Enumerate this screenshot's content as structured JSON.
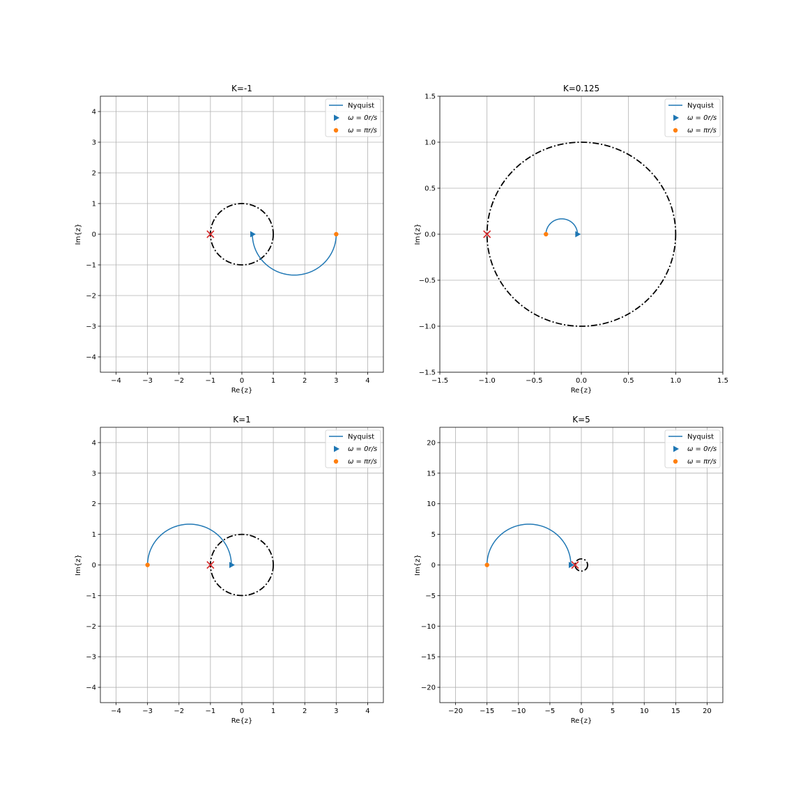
{
  "figure": {
    "legend_labels": {
      "nyquist": "Nyquist",
      "omega0": "ω = 0r/s",
      "omegapi": "ω = πr/s"
    },
    "colors": {
      "nyquist": "#1f77b4",
      "end_marker": "#ff7f0e",
      "critical": "#d62728",
      "unit_circle": "#000000",
      "grid": "#b0b0b0"
    }
  },
  "chart_data": [
    {
      "type": "line",
      "title": "K=-1",
      "xlabel": "Re{z}",
      "ylabel": "Im{z}",
      "xlim": [
        -4.5,
        4.5
      ],
      "ylim": [
        -4.5,
        4.5
      ],
      "xticks": [
        -4,
        -3,
        -2,
        -1,
        0,
        1,
        2,
        3,
        4
      ],
      "yticks": [
        -4,
        -3,
        -2,
        -1,
        0,
        1,
        2,
        3,
        4
      ],
      "tick_labels_x": [
        "−4",
        "−3",
        "−2",
        "−1",
        "0",
        "1",
        "2",
        "3",
        "4"
      ],
      "tick_labels_y": [
        "−4",
        "−3",
        "−2",
        "−1",
        "0",
        "1",
        "2",
        "3",
        "4"
      ],
      "grid": true,
      "legend_position": "top-right",
      "nyquist_arc": {
        "start": [
          0.333,
          0
        ],
        "end": [
          3,
          0
        ],
        "center": [
          1.667,
          0
        ],
        "radius": 1.333,
        "side": "below"
      },
      "start_point": [
        0.333,
        0
      ],
      "end_point": [
        3,
        0
      ],
      "critical_point": [
        -1,
        0
      ],
      "unit_circle_radius": 1
    },
    {
      "type": "line",
      "title": "K=0.125",
      "xlabel": "Re{z}",
      "ylabel": "Im{z}",
      "xlim": [
        -1.5,
        1.5
      ],
      "ylim": [
        -1.5,
        1.5
      ],
      "xticks": [
        -1.5,
        -1.0,
        -0.5,
        0.0,
        0.5,
        1.0,
        1.5
      ],
      "yticks": [
        -1.5,
        -1.0,
        -0.5,
        0.0,
        0.5,
        1.0,
        1.5
      ],
      "tick_labels_x": [
        "−1.5",
        "−1.0",
        "−0.5",
        "0.0",
        "0.5",
        "1.0",
        "1.5"
      ],
      "tick_labels_y": [
        "−1.5",
        "−1.0",
        "−0.5",
        "0.0",
        "0.5",
        "1.0",
        "1.5"
      ],
      "grid": true,
      "legend_position": "top-right",
      "nyquist_arc": {
        "start": [
          -0.042,
          0
        ],
        "end": [
          -0.375,
          0
        ],
        "center": [
          -0.208,
          0
        ],
        "radius": 0.167,
        "side": "above"
      },
      "start_point": [
        -0.042,
        0
      ],
      "end_point": [
        -0.375,
        0
      ],
      "critical_point": [
        -1,
        0
      ],
      "unit_circle_radius": 1
    },
    {
      "type": "line",
      "title": "K=1",
      "xlabel": "Re{z}",
      "ylabel": "Im{z}",
      "xlim": [
        -4.5,
        4.5
      ],
      "ylim": [
        -4.5,
        4.5
      ],
      "xticks": [
        -4,
        -3,
        -2,
        -1,
        0,
        1,
        2,
        3,
        4
      ],
      "yticks": [
        -4,
        -3,
        -2,
        -1,
        0,
        1,
        2,
        3,
        4
      ],
      "tick_labels_x": [
        "−4",
        "−3",
        "−2",
        "−1",
        "0",
        "1",
        "2",
        "3",
        "4"
      ],
      "tick_labels_y": [
        "−4",
        "−3",
        "−2",
        "−1",
        "0",
        "1",
        "2",
        "3",
        "4"
      ],
      "grid": true,
      "legend_position": "top-right",
      "nyquist_arc": {
        "start": [
          -0.333,
          0
        ],
        "end": [
          -3,
          0
        ],
        "center": [
          -1.667,
          0
        ],
        "radius": 1.333,
        "side": "above"
      },
      "start_point": [
        -0.333,
        0
      ],
      "end_point": [
        -3,
        0
      ],
      "critical_point": [
        -1,
        0
      ],
      "unit_circle_radius": 1
    },
    {
      "type": "line",
      "title": "K=5",
      "xlabel": "Re{z}",
      "ylabel": "Im{z}",
      "xlim": [
        -22.5,
        22.5
      ],
      "ylim": [
        -22.5,
        22.5
      ],
      "xticks": [
        -20,
        -15,
        -10,
        -5,
        0,
        5,
        10,
        15,
        20
      ],
      "yticks": [
        -20,
        -15,
        -10,
        -5,
        0,
        5,
        10,
        15,
        20
      ],
      "tick_labels_x": [
        "−20",
        "−15",
        "−10",
        "−5",
        "0",
        "5",
        "10",
        "15",
        "20"
      ],
      "tick_labels_y": [
        "−20",
        "−15",
        "−10",
        "−5",
        "0",
        "5",
        "10",
        "15",
        "20"
      ],
      "grid": true,
      "legend_position": "top-right",
      "nyquist_arc": {
        "start": [
          -1.667,
          0
        ],
        "end": [
          -15,
          0
        ],
        "center": [
          -8.333,
          0
        ],
        "radius": 6.667,
        "side": "above"
      },
      "start_point": [
        -1.667,
        0
      ],
      "end_point": [
        -15,
        0
      ],
      "critical_point": [
        -1,
        0
      ],
      "unit_circle_radius": 1
    }
  ]
}
